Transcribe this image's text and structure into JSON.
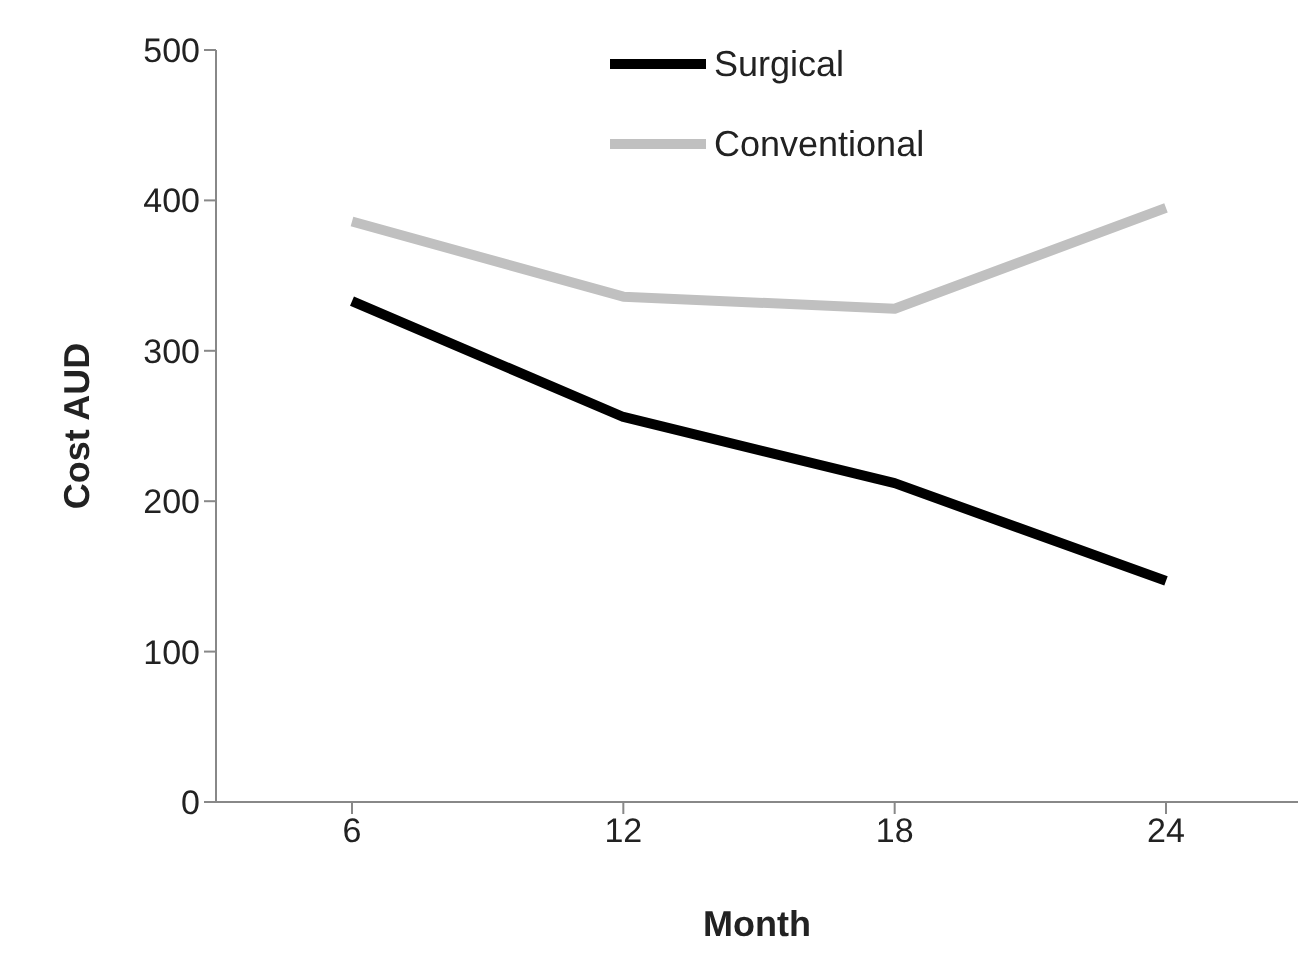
{
  "chart_data": {
    "type": "line",
    "xlabel": "Month",
    "ylabel": "Cost AUD",
    "categories": [
      "6",
      "12",
      "18",
      "24"
    ],
    "series": [
      {
        "name": "Surgical",
        "color": "#000000",
        "values": [
          333,
          256,
          212,
          147
        ]
      },
      {
        "name": "Conventional",
        "color": "#c0c0c0",
        "values": [
          386,
          336,
          328,
          395
        ]
      }
    ],
    "ylim": [
      0,
      500
    ],
    "yticks": [
      0,
      100,
      200,
      300,
      400,
      500
    ],
    "grid": false,
    "legend": "top",
    "marker": "none",
    "line_style": "solid"
  }
}
